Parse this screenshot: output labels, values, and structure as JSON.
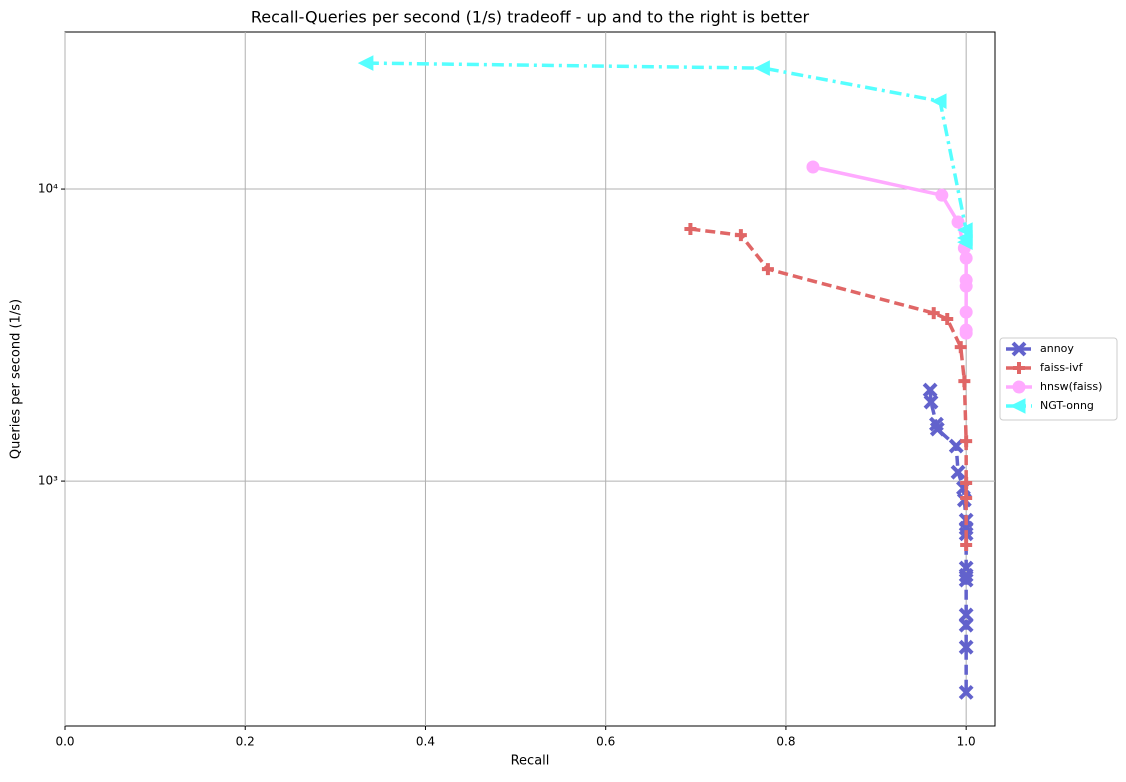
{
  "chart_data": {
    "type": "line",
    "title": "Recall-Queries per second (1/s) tradeoff - up and to the right is better",
    "x_label": "Recall",
    "y_label": "Queries per second (1/s)",
    "xlim": [
      0,
      1.032
    ],
    "ylim": [
      145,
      34500
    ],
    "y_scale": "log",
    "grid": true,
    "legend": "right",
    "xticks": [
      {
        "value": 0,
        "label": "0.0"
      },
      0.2,
      0.4,
      0.6,
      0.8,
      {
        "value": 1,
        "label": "1.0"
      }
    ],
    "yticks": [
      {
        "value": 1000,
        "label": "10³"
      },
      {
        "value": 10000,
        "label": "10⁴"
      }
    ],
    "series": [
      {
        "name": "annoy",
        "color": "#6262cc",
        "linestyle": "dashed",
        "marker": "x",
        "x": [
          0.96,
          0.961,
          0.967,
          0.968,
          0.989,
          0.991,
          0.997,
          0.998,
          1.0,
          1.0,
          1.0,
          1.0,
          1.0,
          1.0,
          1.0,
          1.0,
          1.0,
          1.0
        ],
        "values": [
          2050,
          1865,
          1567,
          1507,
          1318,
          1073,
          946,
          861,
          735,
          690,
          660,
          504,
          476,
          458,
          348,
          321,
          270,
          189
        ]
      },
      {
        "name": "faiss-ivf",
        "color": "#e06666",
        "linestyle": "dashed",
        "marker": "plus",
        "x": [
          0.694,
          0.75,
          0.78,
          0.964,
          0.979,
          0.994,
          0.998,
          1.0,
          1.0,
          1.0,
          1.0
        ],
        "values": [
          7295,
          6955,
          5320,
          3760,
          3590,
          2877,
          2200,
          1371,
          985,
          875,
          604
        ]
      },
      {
        "name": "hnsw(faiss)",
        "color": "#ffaaff",
        "linestyle": "solid",
        "marker": "circle",
        "x": [
          0.83,
          0.973,
          0.991,
          0.998,
          1.0,
          1.0,
          1.0,
          1.0,
          1.0,
          1.0
        ],
        "values": [
          11900,
          9530,
          7710,
          6280,
          5800,
          4880,
          4650,
          3790,
          3290,
          3210
        ]
      },
      {
        "name": "NGT-onng",
        "color": "#55ffff",
        "linestyle": "dashdot",
        "marker": "triangle-left",
        "x": [
          0.335,
          0.775,
          0.971,
          1.0,
          1.0,
          1.0
        ],
        "values": [
          27000,
          25950,
          20000,
          7240,
          6800,
          6580
        ]
      }
    ]
  }
}
